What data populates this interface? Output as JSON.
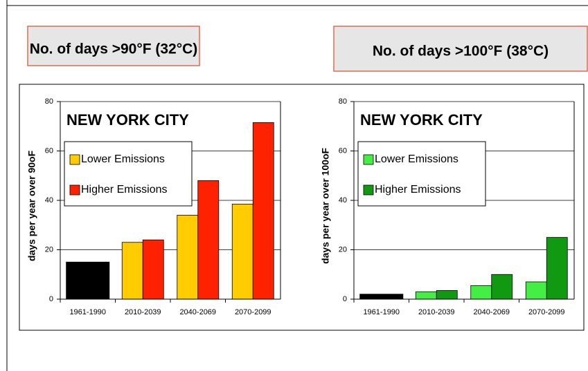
{
  "chart_data": [
    {
      "type": "bar",
      "header": "No. of days >90°F (32°C)",
      "title": "NEW YORK CITY",
      "ylabel": "days per year over 90oF",
      "categories": [
        "1961-1990",
        "2010-2039",
        "2040-2069",
        "2070-2099"
      ],
      "baseline_values": [
        15,
        null,
        null,
        null
      ],
      "baseline_color": "#000000",
      "series": [
        {
          "name": "Lower Emissions",
          "color": "#ffcc00",
          "values": [
            null,
            23,
            34,
            38.5
          ]
        },
        {
          "name": "Higher Emissions",
          "color": "#ff2200",
          "values": [
            null,
            24,
            48,
            71.5
          ]
        }
      ],
      "ylim": [
        0,
        80
      ],
      "yticks": [
        0,
        20,
        40,
        60,
        80
      ],
      "grid": true,
      "legend": "upper left"
    },
    {
      "type": "bar",
      "header": "No. of days >100°F (38°C)",
      "title": "NEW YORK CITY",
      "ylabel": "days per year over 100oF",
      "categories": [
        "1961-1990",
        "2010-2039",
        "2040-2069",
        "2070-2099"
      ],
      "baseline_values": [
        2,
        null,
        null,
        null
      ],
      "baseline_color": "#000000",
      "series": [
        {
          "name": "Lower Emissions",
          "color": "#44ee44",
          "values": [
            null,
            3,
            5.5,
            7
          ]
        },
        {
          "name": "Higher Emissions",
          "color": "#119911",
          "values": [
            null,
            3.5,
            10,
            25
          ]
        }
      ],
      "ylim": [
        0,
        80
      ],
      "yticks": [
        0,
        20,
        40,
        60,
        80
      ],
      "grid": true,
      "legend": "upper left"
    }
  ]
}
